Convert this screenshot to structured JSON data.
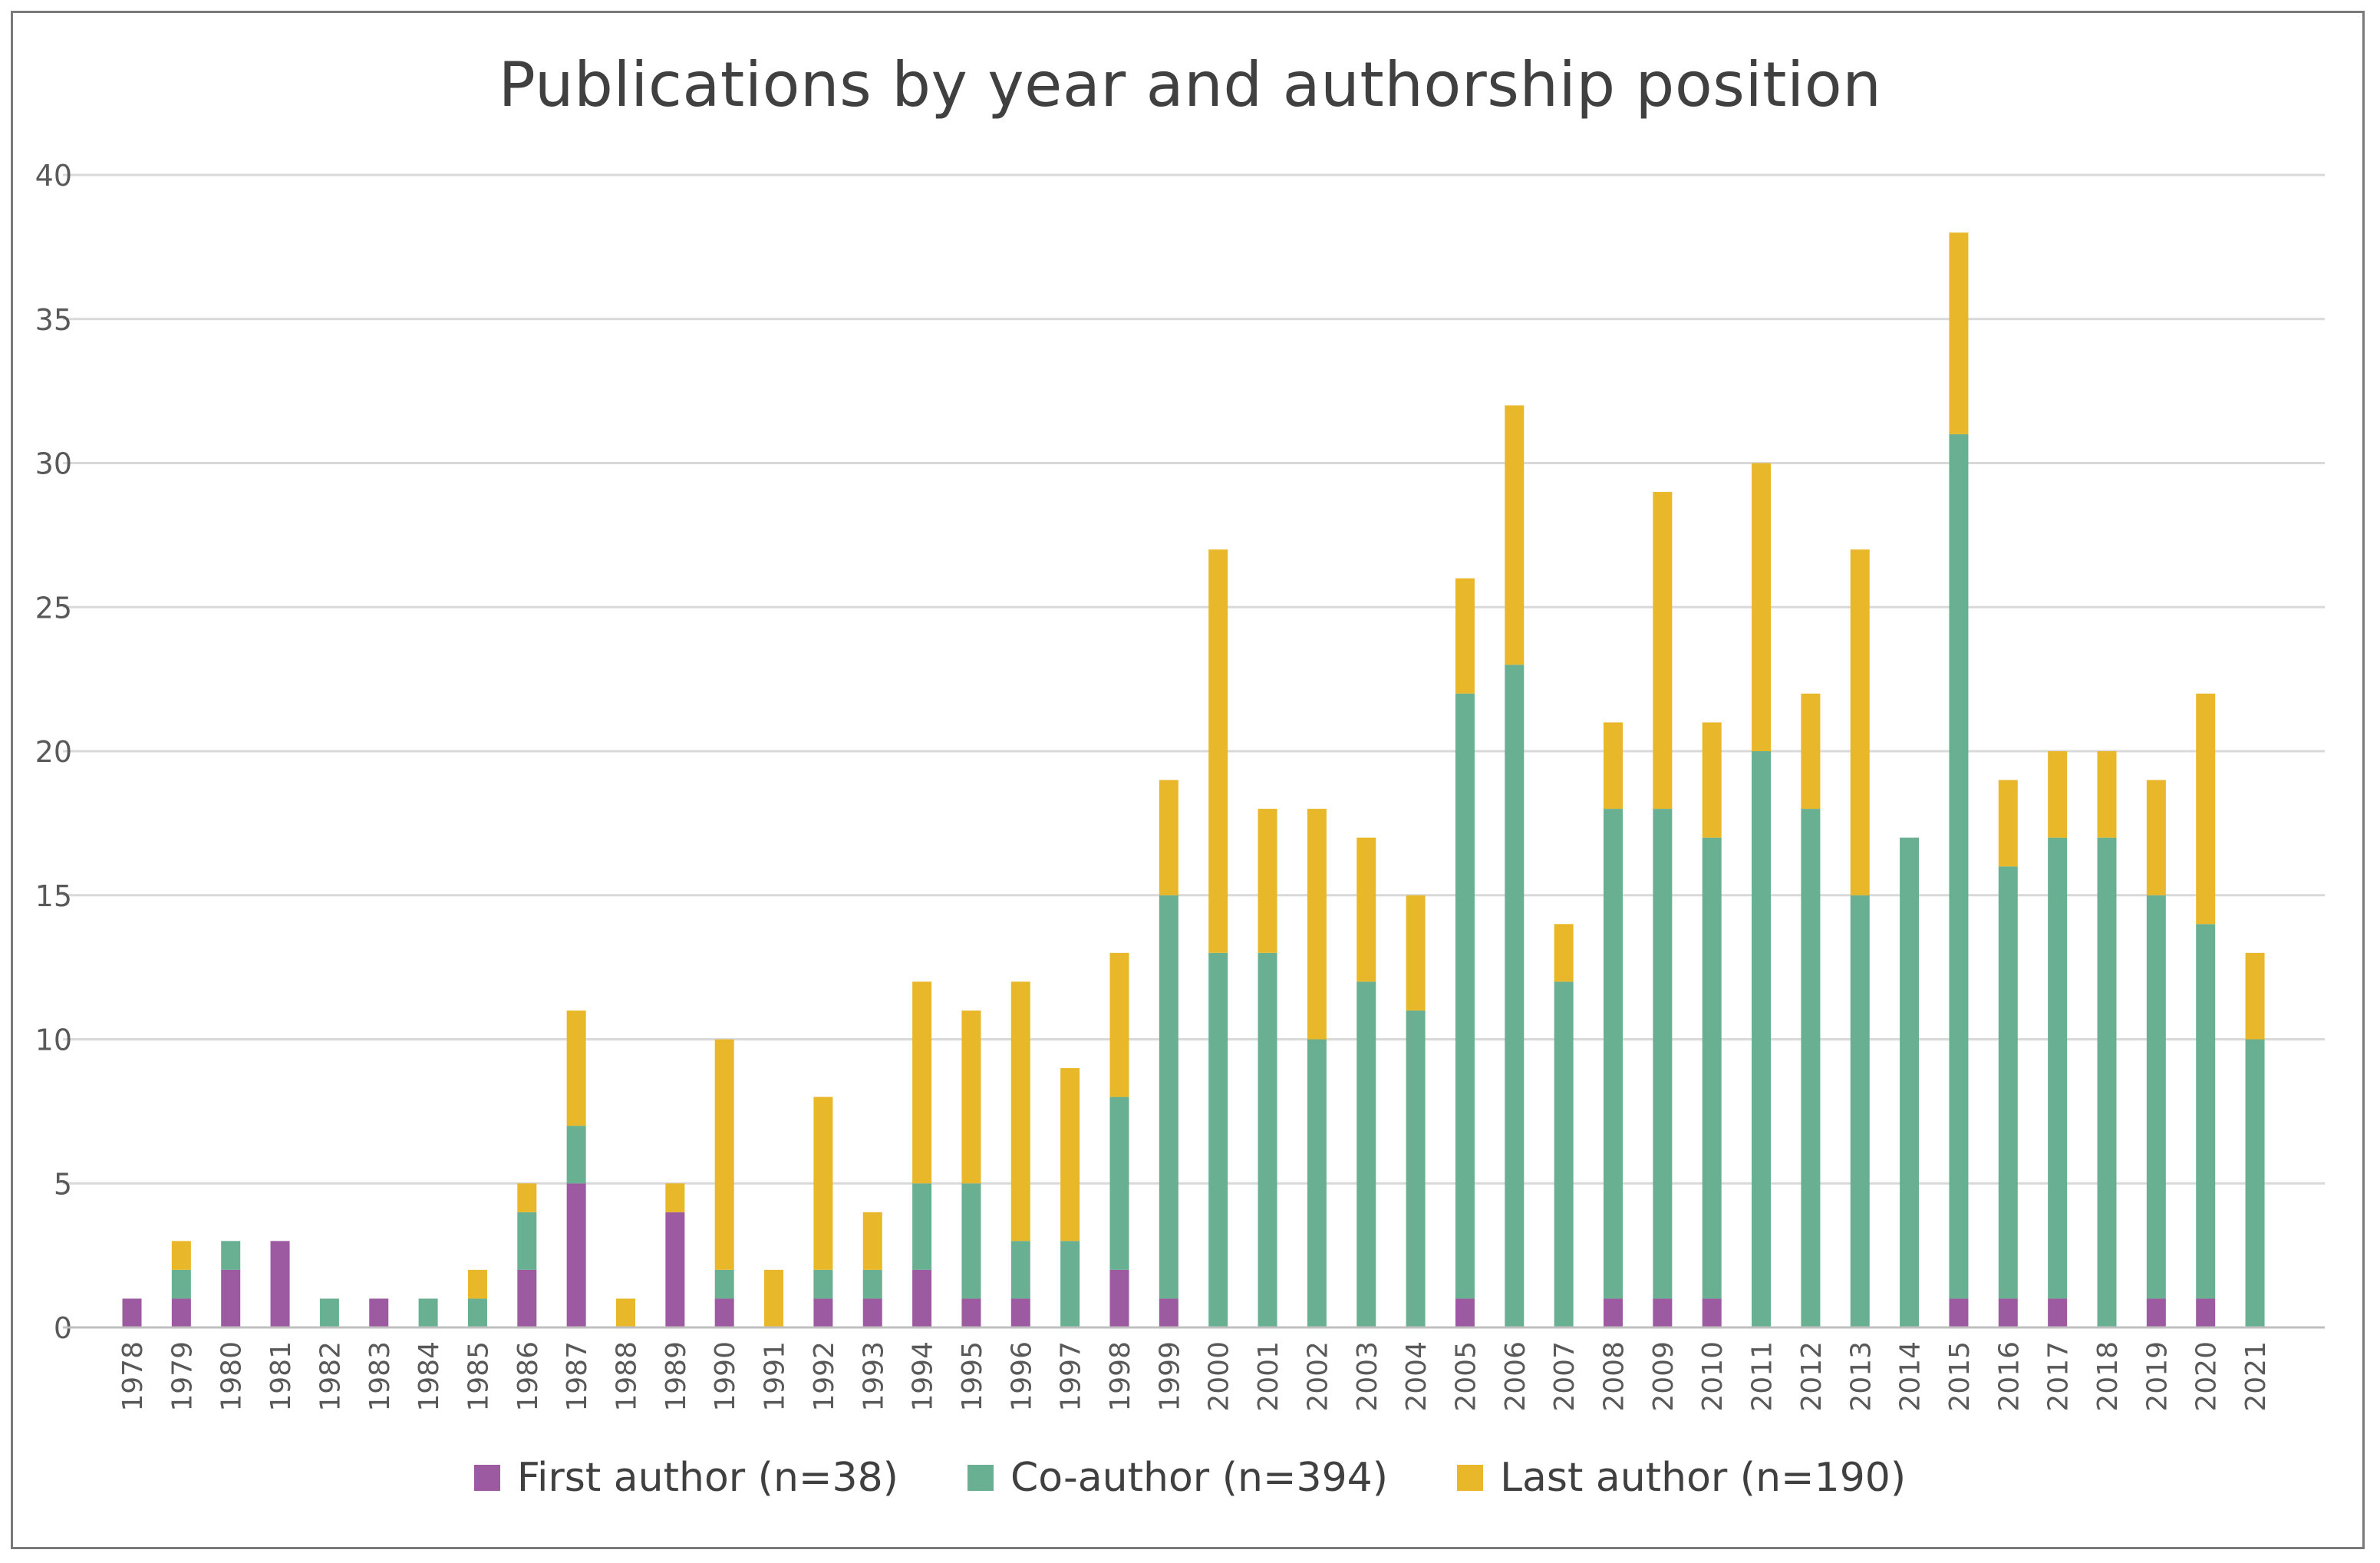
{
  "chart_data": {
    "type": "bar",
    "stacked": true,
    "title": "Publications by year and authorship position",
    "xlabel": "",
    "ylabel": "",
    "ylim": [
      0,
      40
    ],
    "yticks": [
      0,
      5,
      10,
      15,
      20,
      25,
      30,
      35,
      40
    ],
    "grid": true,
    "legend_position": "bottom",
    "categories": [
      "1978",
      "1979",
      "1980",
      "1981",
      "1982",
      "1983",
      "1984",
      "1985",
      "1986",
      "1987",
      "1988",
      "1989",
      "1990",
      "1991",
      "1992",
      "1993",
      "1994",
      "1995",
      "1996",
      "1997",
      "1998",
      "1999",
      "2000",
      "2001",
      "2002",
      "2003",
      "2004",
      "2005",
      "2006",
      "2007",
      "2008",
      "2009",
      "2010",
      "2011",
      "2012",
      "2013",
      "2014",
      "2015",
      "2016",
      "2017",
      "2018",
      "2019",
      "2020",
      "2021"
    ],
    "series": [
      {
        "name": "First author (n=38)",
        "color": "#9c5aa1",
        "values": [
          1,
          1,
          2,
          3,
          0,
          1,
          0,
          0,
          2,
          5,
          0,
          4,
          1,
          0,
          1,
          1,
          2,
          1,
          1,
          0,
          2,
          1,
          0,
          0,
          0,
          0,
          0,
          1,
          0,
          0,
          1,
          1,
          1,
          0,
          0,
          0,
          0,
          1,
          1,
          1,
          0,
          1,
          1,
          0
        ]
      },
      {
        "name": "Co-author (n=394)",
        "color": "#69b093",
        "values": [
          0,
          1,
          1,
          0,
          1,
          0,
          1,
          1,
          2,
          2,
          0,
          0,
          1,
          0,
          1,
          1,
          3,
          4,
          2,
          3,
          6,
          14,
          13,
          13,
          10,
          12,
          11,
          21,
          23,
          12,
          17,
          17,
          16,
          20,
          18,
          15,
          17,
          30,
          15,
          16,
          17,
          14,
          13,
          10
        ]
      },
      {
        "name": "Last author (n=190)",
        "color": "#e9b82a",
        "values": [
          0,
          1,
          0,
          0,
          0,
          0,
          0,
          1,
          1,
          4,
          1,
          1,
          8,
          2,
          6,
          2,
          7,
          6,
          9,
          6,
          5,
          4,
          14,
          5,
          8,
          5,
          4,
          4,
          9,
          2,
          3,
          11,
          4,
          10,
          4,
          12,
          0,
          7,
          3,
          3,
          3,
          4,
          8,
          3
        ]
      }
    ]
  }
}
